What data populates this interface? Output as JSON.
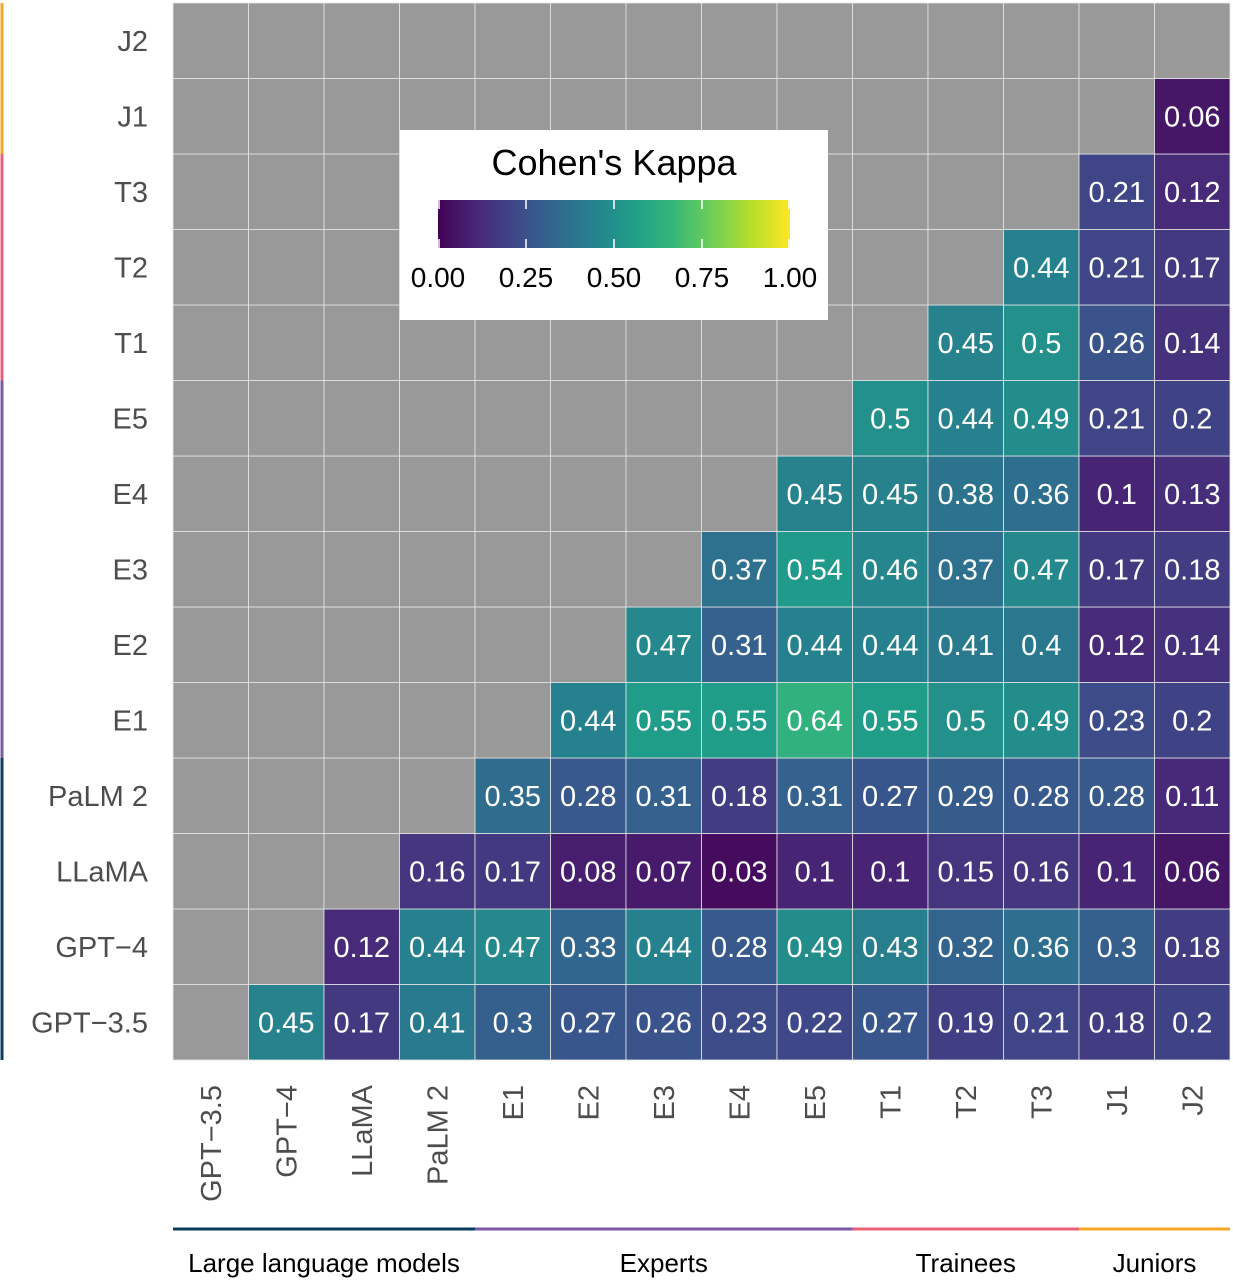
{
  "chart_data": {
    "type": "heatmap",
    "rows_bottom_to_top": [
      "GPT−3.5",
      "GPT−4",
      "LLaMA",
      "PaLM 2",
      "E1",
      "E2",
      "E3",
      "E4",
      "E5",
      "T1",
      "T2",
      "T3",
      "J1",
      "J2"
    ],
    "columns": [
      "GPT−3.5",
      "GPT−4",
      "LLaMA",
      "PaLM 2",
      "E1",
      "E2",
      "E3",
      "E4",
      "E5",
      "T1",
      "T2",
      "T3",
      "J1",
      "J2"
    ],
    "values": [
      [
        null,
        0.45,
        0.17,
        0.41,
        0.3,
        0.27,
        0.26,
        0.23,
        0.22,
        0.27,
        0.19,
        0.21,
        0.18,
        0.2
      ],
      [
        null,
        null,
        0.12,
        0.44,
        0.47,
        0.33,
        0.44,
        0.28,
        0.49,
        0.43,
        0.32,
        0.36,
        0.3,
        0.18
      ],
      [
        null,
        null,
        null,
        0.16,
        0.17,
        0.08,
        0.07,
        0.03,
        0.1,
        0.1,
        0.15,
        0.16,
        0.1,
        0.06
      ],
      [
        null,
        null,
        null,
        null,
        0.35,
        0.28,
        0.31,
        0.18,
        0.31,
        0.27,
        0.29,
        0.28,
        0.28,
        0.11
      ],
      [
        null,
        null,
        null,
        null,
        null,
        0.44,
        0.55,
        0.55,
        0.64,
        0.55,
        0.5,
        0.49,
        0.23,
        0.2
      ],
      [
        null,
        null,
        null,
        null,
        null,
        null,
        0.47,
        0.31,
        0.44,
        0.44,
        0.41,
        0.4,
        0.12,
        0.14
      ],
      [
        null,
        null,
        null,
        null,
        null,
        null,
        null,
        0.37,
        0.54,
        0.46,
        0.37,
        0.47,
        0.17,
        0.18
      ],
      [
        null,
        null,
        null,
        null,
        null,
        null,
        null,
        null,
        0.45,
        0.45,
        0.38,
        0.36,
        0.1,
        0.13
      ],
      [
        null,
        null,
        null,
        null,
        null,
        null,
        null,
        null,
        null,
        0.5,
        0.44,
        0.49,
        0.21,
        0.2
      ],
      [
        null,
        null,
        null,
        null,
        null,
        null,
        null,
        null,
        null,
        null,
        0.45,
        0.5,
        0.26,
        0.14
      ],
      [
        null,
        null,
        null,
        null,
        null,
        null,
        null,
        null,
        null,
        null,
        null,
        0.44,
        0.21,
        0.17
      ],
      [
        null,
        null,
        null,
        null,
        null,
        null,
        null,
        null,
        null,
        null,
        null,
        null,
        0.21,
        0.12
      ],
      [
        null,
        null,
        null,
        null,
        null,
        null,
        null,
        null,
        null,
        null,
        null,
        null,
        null,
        0.06
      ],
      [
        null,
        null,
        null,
        null,
        null,
        null,
        null,
        null,
        null,
        null,
        null,
        null,
        null,
        null
      ]
    ],
    "color_scale": {
      "name": "viridis",
      "range": [
        0,
        1
      ],
      "stops": [
        "#440154",
        "#482878",
        "#3e4989",
        "#31688e",
        "#26828e",
        "#1f9e89",
        "#35b779",
        "#6ece58",
        "#b5de2b",
        "#fde725"
      ]
    },
    "missing_color": "#999999",
    "legend": {
      "title": "Cohen's Kappa",
      "ticks": [
        "0.00",
        "0.25",
        "0.50",
        "0.75",
        "1.00"
      ],
      "tick_values": [
        0,
        0.25,
        0.5,
        0.75,
        1
      ],
      "placement": "inside-top-left"
    },
    "groups": [
      {
        "name": "Large language models",
        "members": [
          "GPT−3.5",
          "GPT−4",
          "LLaMA",
          "PaLM 2"
        ],
        "color": "#0b3c5d"
      },
      {
        "name": "Experts",
        "members": [
          "E1",
          "E2",
          "E3",
          "E4",
          "E5"
        ],
        "color": "#7b5aa6"
      },
      {
        "name": "Trainees",
        "members": [
          "T1",
          "T2",
          "T3"
        ],
        "color": "#e8607a"
      },
      {
        "name": "Juniors",
        "members": [
          "J1",
          "J2"
        ],
        "color": "#f5a623"
      }
    ]
  }
}
